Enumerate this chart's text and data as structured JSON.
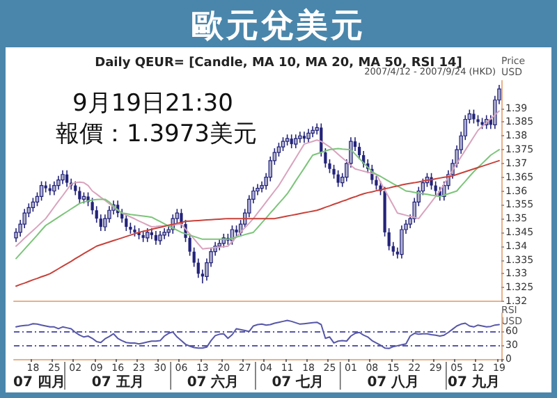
{
  "chart_data": [
    {
      "type": "candlestick",
      "title": "歐元兌美元",
      "subtitle": "Daily QEUR= [Candle, MA 10, MA 20, MA 50, RSI 14]",
      "ylabel": "Price\nUSD",
      "annotations": [
        "9月19日21:30",
        "報價：1.3973美元",
        "2007/4/12 - 2007/9/24 (HKD)"
      ],
      "color": "#23237a",
      "tick_labels": "y",
      "ylim": [
        1.32,
        1.4
      ],
      "yticks": [
        1.32,
        1.325,
        1.33,
        1.335,
        1.34,
        1.345,
        1.35,
        1.355,
        1.36,
        1.365,
        1.37,
        1.375,
        1.38,
        1.385,
        1.39
      ],
      "categories": [
        null,
        null,
        null,
        null,
        "18",
        null,
        null,
        null,
        null,
        "25",
        null,
        null,
        null,
        null,
        "02",
        null,
        null,
        null,
        null,
        "09",
        null,
        null,
        null,
        null,
        "16",
        null,
        null,
        null,
        null,
        "23",
        null,
        null,
        null,
        null,
        "30",
        null,
        null,
        null,
        null,
        "06",
        null,
        null,
        null,
        null,
        "13",
        null,
        null,
        null,
        null,
        "20",
        null,
        null,
        null,
        null,
        "27",
        null,
        null,
        null,
        null,
        "04",
        null,
        null,
        null,
        null,
        "11",
        null,
        null,
        null,
        null,
        "18",
        null,
        null,
        null,
        null,
        "25",
        null,
        null,
        null,
        null,
        "01",
        null,
        null,
        null,
        null,
        "08",
        null,
        null,
        null,
        null,
        "15",
        null,
        null,
        null,
        null,
        "22",
        null,
        null,
        null,
        null,
        "29",
        null,
        null,
        null,
        null,
        "05",
        null,
        null,
        null,
        null,
        "12",
        null,
        null,
        null,
        null,
        "19"
      ],
      "ohlc": [
        [
          1.343,
          1.3465,
          1.3415,
          1.345
        ],
        [
          1.345,
          1.3495,
          1.3435,
          1.348
        ],
        [
          1.348,
          1.3535,
          1.3465,
          1.352
        ],
        [
          1.352,
          1.3555,
          1.3505,
          1.354
        ],
        [
          1.354,
          1.3575,
          1.3525,
          1.356
        ],
        [
          1.356,
          1.3595,
          1.3545,
          1.358
        ],
        [
          1.358,
          1.3635,
          1.3565,
          1.362
        ],
        [
          1.362,
          1.3635,
          1.3595,
          1.361
        ],
        [
          1.361,
          1.3625,
          1.3585,
          1.36
        ],
        [
          1.36,
          1.3635,
          1.3585,
          1.362
        ],
        [
          1.362,
          1.3655,
          1.3605,
          1.364
        ],
        [
          1.364,
          1.3675,
          1.3625,
          1.366
        ],
        [
          1.366,
          1.3675,
          1.3615,
          1.363
        ],
        [
          1.363,
          1.3645,
          1.3605,
          1.362
        ],
        [
          1.362,
          1.3635,
          1.3585,
          1.36
        ],
        [
          1.36,
          1.3615,
          1.3555,
          1.357
        ],
        [
          1.357,
          1.3595,
          1.3555,
          1.358
        ],
        [
          1.358,
          1.3595,
          1.3545,
          1.356
        ],
        [
          1.356,
          1.3575,
          1.3515,
          1.353
        ],
        [
          1.353,
          1.3545,
          1.3485,
          1.35
        ],
        [
          1.35,
          1.3515,
          1.3455,
          1.347
        ],
        [
          1.347,
          1.3515,
          1.3455,
          1.35
        ],
        [
          1.35,
          1.3545,
          1.3485,
          1.353
        ],
        [
          1.353,
          1.3565,
          1.3515,
          1.355
        ],
        [
          1.355,
          1.3565,
          1.3505,
          1.352
        ],
        [
          1.352,
          1.3535,
          1.3485,
          1.35
        ],
        [
          1.35,
          1.3515,
          1.3455,
          1.347
        ],
        [
          1.347,
          1.3485,
          1.3445,
          1.346
        ],
        [
          1.346,
          1.3475,
          1.3435,
          1.345
        ],
        [
          1.345,
          1.3465,
          1.3425,
          1.344
        ],
        [
          1.344,
          1.3455,
          1.3415,
          1.343
        ],
        [
          1.343,
          1.3465,
          1.3415,
          1.345
        ],
        [
          1.345,
          1.3465,
          1.3425,
          1.344
        ],
        [
          1.344,
          1.3455,
          1.3405,
          1.342
        ],
        [
          1.342,
          1.3455,
          1.3405,
          1.344
        ],
        [
          1.344,
          1.3465,
          1.3425,
          1.345
        ],
        [
          1.345,
          1.3475,
          1.3435,
          1.346
        ],
        [
          1.346,
          1.3515,
          1.3445,
          1.35
        ],
        [
          1.35,
          1.3535,
          1.3485,
          1.352
        ],
        [
          1.352,
          1.3535,
          1.3465,
          1.348
        ],
        [
          1.348,
          1.3495,
          1.3415,
          1.343
        ],
        [
          1.343,
          1.3445,
          1.3365,
          1.338
        ],
        [
          1.338,
          1.3395,
          1.3325,
          1.334
        ],
        [
          1.334,
          1.3355,
          1.3285,
          1.33
        ],
        [
          1.33,
          1.3315,
          1.3265,
          1.329
        ],
        [
          1.329,
          1.3355,
          1.3275,
          1.334
        ],
        [
          1.334,
          1.3395,
          1.3325,
          1.338
        ],
        [
          1.338,
          1.3415,
          1.3365,
          1.34
        ],
        [
          1.34,
          1.3425,
          1.3385,
          1.341
        ],
        [
          1.341,
          1.3445,
          1.3395,
          1.343
        ],
        [
          1.343,
          1.3445,
          1.3405,
          1.342
        ],
        [
          1.342,
          1.3475,
          1.3405,
          1.346
        ],
        [
          1.346,
          1.3475,
          1.3435,
          1.345
        ],
        [
          1.345,
          1.3495,
          1.3435,
          1.348
        ],
        [
          1.348,
          1.3535,
          1.3465,
          1.352
        ],
        [
          1.352,
          1.3585,
          1.3505,
          1.357
        ],
        [
          1.357,
          1.3615,
          1.3555,
          1.36
        ],
        [
          1.36,
          1.3625,
          1.3585,
          1.361
        ],
        [
          1.361,
          1.3635,
          1.3595,
          1.362
        ],
        [
          1.362,
          1.3665,
          1.3605,
          1.365
        ],
        [
          1.365,
          1.3725,
          1.3635,
          1.371
        ],
        [
          1.371,
          1.3755,
          1.3695,
          1.374
        ],
        [
          1.374,
          1.3775,
          1.3725,
          1.376
        ],
        [
          1.376,
          1.3795,
          1.3745,
          1.378
        ],
        [
          1.378,
          1.3805,
          1.3765,
          1.379
        ],
        [
          1.379,
          1.3805,
          1.3755,
          1.377
        ],
        [
          1.377,
          1.3805,
          1.3755,
          1.379
        ],
        [
          1.379,
          1.3815,
          1.3775,
          1.38
        ],
        [
          1.38,
          1.3815,
          1.3775,
          1.379
        ],
        [
          1.379,
          1.3825,
          1.3775,
          1.381
        ],
        [
          1.381,
          1.3835,
          1.3795,
          1.382
        ],
        [
          1.382,
          1.3845,
          1.3805,
          1.383
        ],
        [
          1.383,
          1.3845,
          1.3725,
          1.374
        ],
        [
          1.374,
          1.3755,
          1.3685,
          1.37
        ],
        [
          1.37,
          1.3715,
          1.3665,
          1.368
        ],
        [
          1.368,
          1.3695,
          1.3645,
          1.366
        ],
        [
          1.366,
          1.3675,
          1.3615,
          1.363
        ],
        [
          1.363,
          1.3665,
          1.3615,
          1.365
        ],
        [
          1.365,
          1.3715,
          1.3635,
          1.37
        ],
        [
          1.37,
          1.3795,
          1.3685,
          1.378
        ],
        [
          1.378,
          1.3795,
          1.3745,
          1.376
        ],
        [
          1.376,
          1.3775,
          1.3715,
          1.373
        ],
        [
          1.373,
          1.3745,
          1.3685,
          1.37
        ],
        [
          1.37,
          1.3715,
          1.3665,
          1.368
        ],
        [
          1.368,
          1.3695,
          1.3625,
          1.364
        ],
        [
          1.364,
          1.3655,
          1.3605,
          1.362
        ],
        [
          1.362,
          1.3635,
          1.3585,
          1.36
        ],
        [
          1.36,
          1.3615,
          1.3435,
          1.345
        ],
        [
          1.345,
          1.3465,
          1.3385,
          1.34
        ],
        [
          1.34,
          1.3415,
          1.3365,
          1.338
        ],
        [
          1.338,
          1.3395,
          1.3355,
          1.337
        ],
        [
          1.337,
          1.3475,
          1.3355,
          1.346
        ],
        [
          1.346,
          1.3495,
          1.3445,
          1.348
        ],
        [
          1.348,
          1.3515,
          1.3465,
          1.35
        ],
        [
          1.35,
          1.3575,
          1.3485,
          1.356
        ],
        [
          1.356,
          1.3615,
          1.3545,
          1.36
        ],
        [
          1.36,
          1.3645,
          1.3585,
          1.363
        ],
        [
          1.363,
          1.3665,
          1.3615,
          1.365
        ],
        [
          1.365,
          1.3665,
          1.3605,
          1.362
        ],
        [
          1.362,
          1.3635,
          1.3585,
          1.36
        ],
        [
          1.36,
          1.3615,
          1.3565,
          1.358
        ],
        [
          1.358,
          1.3635,
          1.3565,
          1.362
        ],
        [
          1.362,
          1.3675,
          1.3605,
          1.366
        ],
        [
          1.366,
          1.3715,
          1.3645,
          1.37
        ],
        [
          1.37,
          1.3765,
          1.3685,
          1.375
        ],
        [
          1.375,
          1.3815,
          1.3735,
          1.38
        ],
        [
          1.38,
          1.3875,
          1.3785,
          1.386
        ],
        [
          1.386,
          1.3895,
          1.3845,
          1.388
        ],
        [
          1.388,
          1.3895,
          1.3845,
          1.386
        ],
        [
          1.386,
          1.3875,
          1.3835,
          1.385
        ],
        [
          1.385,
          1.3865,
          1.3825,
          1.384
        ],
        [
          1.384,
          1.3875,
          1.3825,
          1.386
        ],
        [
          1.386,
          1.3875,
          1.3825,
          1.384
        ],
        [
          1.384,
          1.3945,
          1.3825,
          1.393
        ],
        [
          1.393,
          1.3985,
          1.3915,
          1.397
        ]
      ],
      "series": [
        {
          "type": "line",
          "color": "#d9a3bd",
          "values": [
            1.34,
            1.3414,
            1.3429,
            1.3443,
            1.3457,
            1.3471,
            1.3486,
            1.35,
            1.3521,
            1.3542,
            1.3563,
            1.3583,
            1.3604,
            1.3625,
            1.363,
            1.3632,
            1.363,
            1.362,
            1.36,
            1.3589,
            1.3577,
            1.3566,
            1.3554,
            1.3543,
            1.3531,
            1.352,
            1.3513,
            1.3506,
            1.3499,
            1.3491,
            1.3484,
            1.3477,
            1.347,
            1.3471,
            1.3473,
            1.3474,
            1.3476,
            1.3477,
            1.3479,
            1.348,
            1.3462,
            1.3444,
            1.3426,
            1.3408,
            1.339,
            1.3392,
            1.3393,
            1.3395,
            1.3397,
            1.3398,
            1.34,
            1.3417,
            1.3433,
            1.345,
            1.3467,
            1.3483,
            1.35,
            1.352,
            1.354,
            1.356,
            1.358,
            1.36,
            1.362,
            1.3645,
            1.367,
            1.3695,
            1.372,
            1.3745,
            1.377,
            1.3775,
            1.378,
            1.3785,
            1.378,
            1.377,
            1.376,
            1.3747,
            1.3733,
            1.372,
            1.3707,
            1.3693,
            1.368,
            1.3676,
            1.3672,
            1.3668,
            1.3664,
            1.366,
            1.3632,
            1.3604,
            1.3576,
            1.3548,
            1.352,
            1.3516,
            1.3512,
            1.3508,
            1.3504,
            1.35,
            1.352,
            1.354,
            1.356,
            1.358,
            1.36,
            1.3625,
            1.365,
            1.3675,
            1.37,
            1.3724,
            1.3748,
            1.3772,
            1.3796,
            1.382,
            1.3834,
            1.3848,
            1.3862,
            1.3876,
            1.389
          ]
        },
        {
          "type": "line",
          "color": "#7cc47a",
          "values": [
            1.3355,
            1.3372,
            1.3389,
            1.3406,
            1.3423,
            1.344,
            1.3458,
            1.3475,
            1.3485,
            1.3495,
            1.3505,
            1.3515,
            1.3525,
            1.3535,
            1.3545,
            1.3555,
            1.356,
            1.3564,
            1.3567,
            1.3569,
            1.357,
            1.357,
            1.356,
            1.3545,
            1.3532,
            1.352,
            1.3518,
            1.3515,
            1.3513,
            1.3511,
            1.3509,
            1.3507,
            1.3505,
            1.3497,
            1.3489,
            1.3481,
            1.3473,
            1.3466,
            1.3458,
            1.345,
            1.3445,
            1.344,
            1.3435,
            1.343,
            1.3425,
            1.3425,
            1.3425,
            1.3425,
            1.3425,
            1.3425,
            1.3425,
            1.3429,
            1.3433,
            1.3437,
            1.3442,
            1.3446,
            1.345,
            1.3467,
            1.3485,
            1.3502,
            1.352,
            1.3537,
            1.3555,
            1.3572,
            1.359,
            1.3613,
            1.3637,
            1.366,
            1.3683,
            1.3707,
            1.373,
            1.3735,
            1.374,
            1.3745,
            1.375,
            1.3752,
            1.3754,
            1.3752,
            1.3751,
            1.375,
            1.3734,
            1.3718,
            1.3702,
            1.3686,
            1.367,
            1.3661,
            1.3653,
            1.3644,
            1.3635,
            1.3626,
            1.3618,
            1.3609,
            1.36,
            1.3598,
            1.3595,
            1.3592,
            1.359,
            1.3588,
            1.3585,
            1.3583,
            1.358,
            1.3585,
            1.359,
            1.3595,
            1.36,
            1.3618,
            1.3635,
            1.3653,
            1.367,
            1.3685,
            1.37,
            1.3715,
            1.373,
            1.374,
            1.375
          ]
        },
        {
          "type": "line",
          "color": "#c8413a",
          "values": [
            1.3255,
            1.3261,
            1.3266,
            1.3272,
            1.3278,
            1.3283,
            1.3289,
            1.3294,
            1.33,
            1.3309,
            1.3318,
            1.3327,
            1.3336,
            1.3345,
            1.3355,
            1.3364,
            1.3373,
            1.3382,
            1.3391,
            1.34,
            1.3405,
            1.341,
            1.3415,
            1.342,
            1.3425,
            1.343,
            1.3435,
            1.344,
            1.3445,
            1.345,
            1.3454,
            1.3457,
            1.3461,
            1.3465,
            1.3468,
            1.3472,
            1.3476,
            1.3479,
            1.3483,
            1.3486,
            1.349,
            1.3491,
            1.3492,
            1.3493,
            1.3494,
            1.3495,
            1.3496,
            1.3497,
            1.3498,
            1.3499,
            1.35,
            1.35,
            1.35,
            1.35,
            1.35,
            1.35,
            1.35,
            1.35,
            1.35,
            1.35,
            1.35,
            1.35,
            1.3503,
            1.3506,
            1.3509,
            1.3512,
            1.3515,
            1.3518,
            1.3521,
            1.3524,
            1.3527,
            1.353,
            1.3535,
            1.3541,
            1.3546,
            1.3552,
            1.3557,
            1.3563,
            1.3568,
            1.3574,
            1.3579,
            1.3585,
            1.359,
            1.3594,
            1.3597,
            1.3601,
            1.3604,
            1.3608,
            1.3611,
            1.3615,
            1.3618,
            1.3622,
            1.3625,
            1.3628,
            1.363,
            1.3633,
            1.3636,
            1.3639,
            1.3641,
            1.3644,
            1.3647,
            1.365,
            1.3652,
            1.3655,
            1.366,
            1.3665,
            1.367,
            1.3675,
            1.368,
            1.3685,
            1.369,
            1.3695,
            1.37,
            1.3705,
            1.371
          ]
        }
      ]
    },
    {
      "type": "line",
      "ylabel": "RSI\nUSD",
      "color": "#5656a8",
      "annotations": [
        "07 四月",
        "07 五月",
        "07 六月",
        "07 七月",
        "07 八月",
        "07 九月"
      ],
      "ylim": [
        0,
        100
      ],
      "yticks": [
        0,
        30,
        60
      ],
      "ref_lines": [
        {
          "axis": "y",
          "value": 30,
          "line_style": "dashed",
          "color": "#5656a8"
        },
        {
          "axis": "y",
          "value": 60,
          "line_style": "dashed",
          "color": "#5656a8"
        }
      ],
      "categories": [
        null,
        null,
        null,
        null,
        "18",
        null,
        null,
        null,
        null,
        "25",
        null,
        null,
        null,
        null,
        "02",
        null,
        null,
        null,
        null,
        "09",
        null,
        null,
        null,
        null,
        "16",
        null,
        null,
        null,
        null,
        "23",
        null,
        null,
        null,
        null,
        "30",
        null,
        null,
        null,
        null,
        "06",
        null,
        null,
        null,
        null,
        "13",
        null,
        null,
        null,
        null,
        "20",
        null,
        null,
        null,
        null,
        "27",
        null,
        null,
        null,
        null,
        "04",
        null,
        null,
        null,
        null,
        "11",
        null,
        null,
        null,
        null,
        "18",
        null,
        null,
        null,
        null,
        "25",
        null,
        null,
        null,
        null,
        "01",
        null,
        null,
        null,
        null,
        "08",
        null,
        null,
        null,
        null,
        "15",
        null,
        null,
        null,
        null,
        "22",
        null,
        null,
        null,
        null,
        "29",
        null,
        null,
        null,
        null,
        "05",
        null,
        null,
        null,
        null,
        "12",
        null,
        null,
        null,
        null,
        "19"
      ],
      "values": [
        70,
        72,
        73,
        74,
        77,
        76,
        74,
        72,
        70,
        70,
        66,
        70,
        68,
        66,
        58,
        52,
        48,
        50,
        45,
        38,
        36,
        44,
        49,
        55,
        45,
        40,
        36,
        35,
        35,
        33,
        35,
        37,
        39,
        39,
        40,
        50,
        56,
        59,
        48,
        40,
        32,
        28,
        25,
        24,
        24,
        26,
        40,
        51,
        54,
        55,
        45,
        53,
        66,
        64,
        62,
        60,
        72,
        75,
        76,
        74,
        75,
        78,
        80,
        82,
        84,
        82,
        79,
        76,
        77,
        78,
        79,
        80,
        75,
        45,
        48,
        35,
        39,
        40,
        39,
        50,
        56,
        58,
        52,
        48,
        40,
        35,
        30,
        24,
        23,
        27,
        29,
        31,
        33,
        50,
        56,
        54,
        55,
        55,
        53,
        52,
        50,
        52,
        58,
        65,
        72,
        76,
        78,
        72,
        70,
        74,
        72,
        70,
        71,
        74,
        75
      ]
    }
  ]
}
